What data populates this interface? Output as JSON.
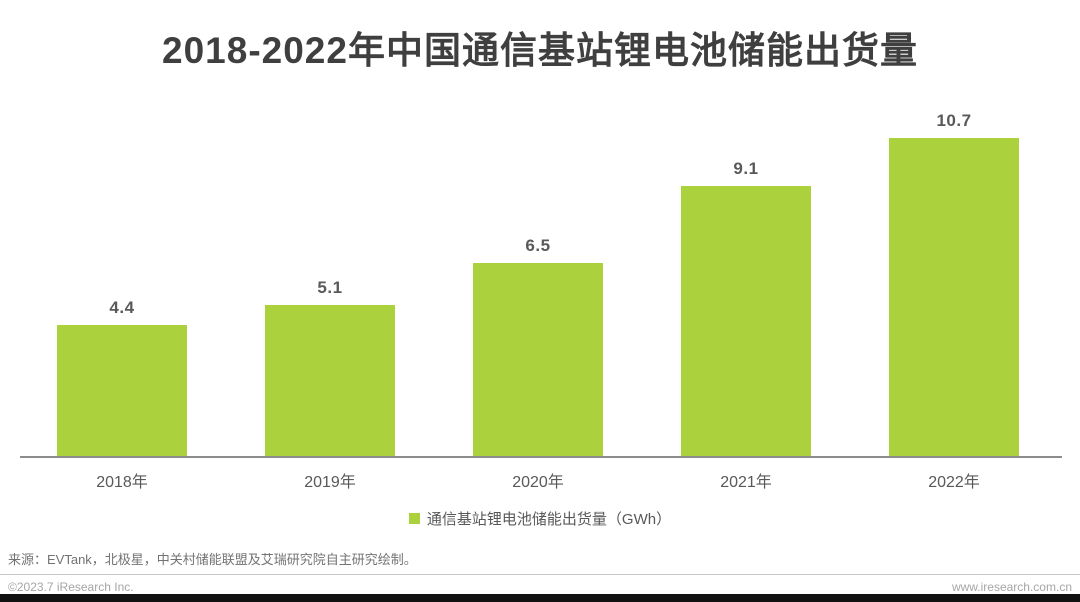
{
  "title": "2018-2022年中国通信基站锂电池储能出货量",
  "chart_data": {
    "type": "bar",
    "categories": [
      "2018年",
      "2019年",
      "2020年",
      "2021年",
      "2022年"
    ],
    "values": [
      4.4,
      5.1,
      6.5,
      9.1,
      10.7
    ],
    "value_labels": [
      "4.4",
      "5.1",
      "6.5",
      "9.1",
      "10.7"
    ],
    "title": "2018-2022年中国通信基站锂电池储能出货量",
    "xlabel": "",
    "ylabel": "",
    "ylim": [
      0,
      12
    ],
    "grid": false,
    "legend_entries": [
      "通信基站锂电池储能出货量（GWh）"
    ],
    "legend_position": "bottom",
    "bar_color": "#abd13c"
  },
  "legend": {
    "label": "通信基站锂电池储能出货量（GWh）",
    "color": "#abd13c"
  },
  "source": "来源：EVTank，北极星，中关村储能联盟及艾瑞研究院自主研究绘制。",
  "footer": {
    "left": "©2023.7 iResearch Inc.",
    "right": "www.iresearch.com.cn"
  }
}
